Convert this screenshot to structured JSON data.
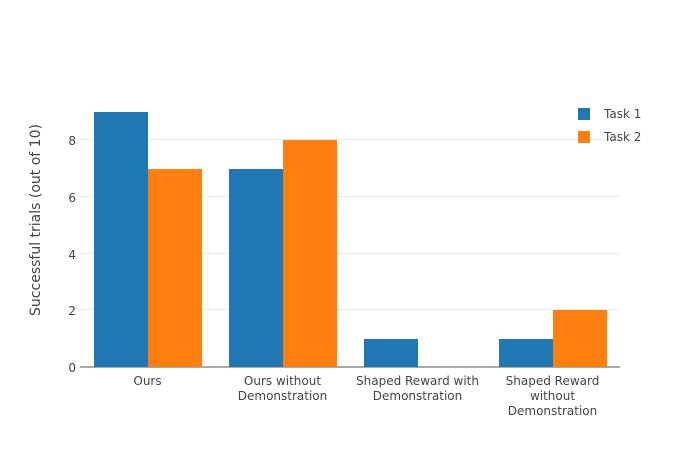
{
  "figure": {
    "background": "#ffffff",
    "text_color": "#444444",
    "grid_color": "#ececec",
    "axis_line_color": "#aaaaaa"
  },
  "chart_data": {
    "type": "bar",
    "bar_mode": "grouped",
    "title": "",
    "xlabel": "",
    "ylabel": "Successful trials (out of 10)",
    "categories": [
      "Ours",
      "Ours without Demonstration",
      "Shaped Reward with Demonstration",
      "Shaped Reward without Demonstration"
    ],
    "series": [
      {
        "name": "Task 1",
        "color": "#1f77b4",
        "values": [
          9,
          7,
          1,
          1
        ]
      },
      {
        "name": "Task 2",
        "color": "#ff7f0e",
        "values": [
          7,
          8,
          0,
          2
        ]
      }
    ],
    "yticks": [
      0,
      2,
      4,
      6,
      8
    ],
    "ylim": [
      0,
      9.5
    ],
    "grid": true,
    "legend_position": "top-right"
  }
}
